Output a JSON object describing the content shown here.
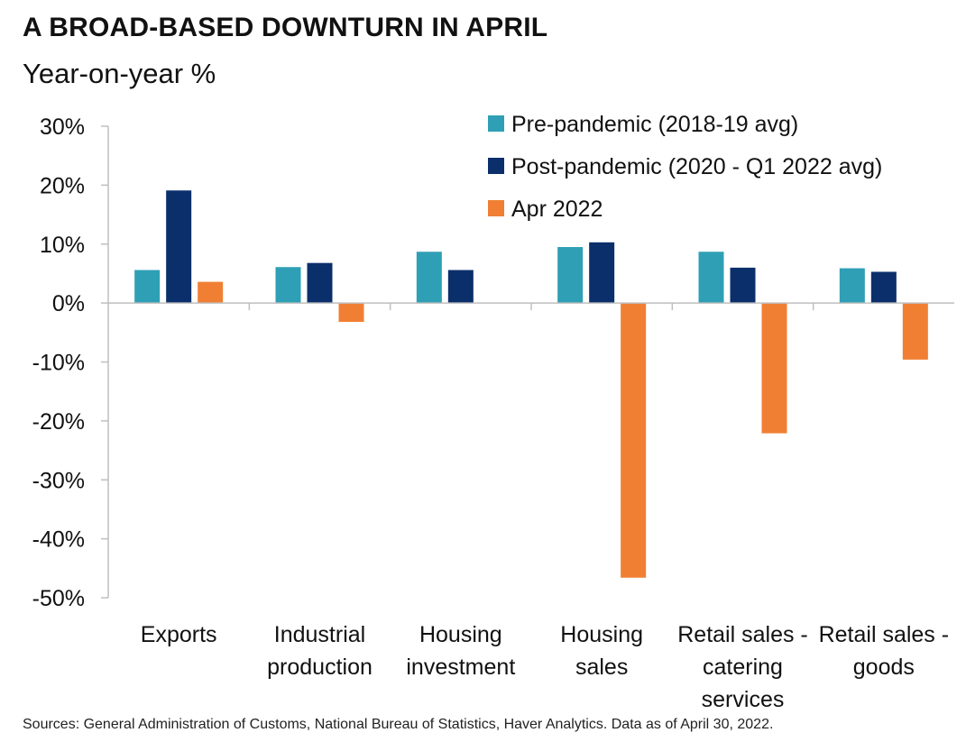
{
  "title": "A BROAD-BASED DOWNTURN IN APRIL",
  "subtitle": "Year-on-year %",
  "source": "Sources: General Administration of Customs, National Bureau of Statistics, Haver Analytics. Data as of April 30, 2022.",
  "colors": {
    "pre": "#2E9FB5",
    "post": "#0B2F6B",
    "apr": "#F07F33",
    "axis": "#BFBFBF"
  },
  "chart_data": {
    "type": "bar",
    "categories": [
      [
        "Exports"
      ],
      [
        "Industrial",
        "production"
      ],
      [
        "Housing",
        "investment"
      ],
      [
        "Housing",
        "sales"
      ],
      [
        "Retail sales -",
        "catering",
        "services"
      ],
      [
        "Retail sales -",
        "goods"
      ]
    ],
    "series": [
      {
        "name": "Pre-pandemic (2018-19 avg)",
        "values": [
          5.6,
          6.1,
          8.7,
          9.5,
          8.7,
          5.9
        ]
      },
      {
        "name": "Post-pandemic (2020 - Q1 2022 avg)",
        "values": [
          19.1,
          6.8,
          5.6,
          10.3,
          6.0,
          5.3
        ]
      },
      {
        "name": "Apr 2022",
        "values": [
          3.6,
          -3.2,
          null,
          -46.6,
          -22.1,
          -9.6
        ]
      }
    ],
    "ylim": [
      -50,
      30
    ],
    "yticks": [
      30,
      20,
      10,
      0,
      -10,
      -20,
      -30,
      -40,
      -50
    ],
    "ytick_labels": [
      "30%",
      "20%",
      "10%",
      "0%",
      "-10%",
      "-20%",
      "-30%",
      "-40%",
      "-50%"
    ],
    "xlabel": "",
    "ylabel": "",
    "legend_position": "top-right",
    "grid": false
  }
}
